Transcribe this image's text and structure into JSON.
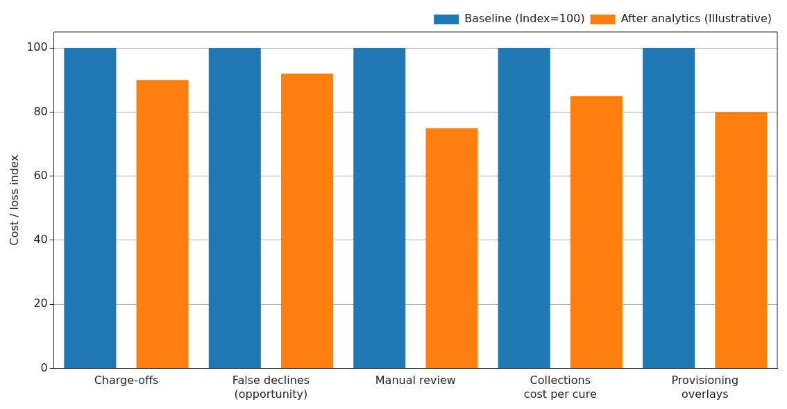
{
  "chart_data": {
    "type": "bar",
    "ylabel": "Cost / loss index",
    "categories": [
      "Charge-offs",
      "False declines\n(opportunity)",
      "Manual review",
      "Collections\ncost per cure",
      "Provisioning\noverlays"
    ],
    "series": [
      {
        "name": "Baseline (Index=100)",
        "color": "#1f77b4",
        "values": [
          100,
          100,
          100,
          100,
          100
        ]
      },
      {
        "name": "After analytics (Illustrative)",
        "color": "#ff7f0e",
        "values": [
          90,
          92,
          75,
          85,
          80
        ]
      }
    ],
    "ylim": [
      0,
      105
    ],
    "yticks": [
      0,
      20,
      40,
      60,
      80,
      100
    ],
    "grid": "y",
    "legend": "top right"
  }
}
